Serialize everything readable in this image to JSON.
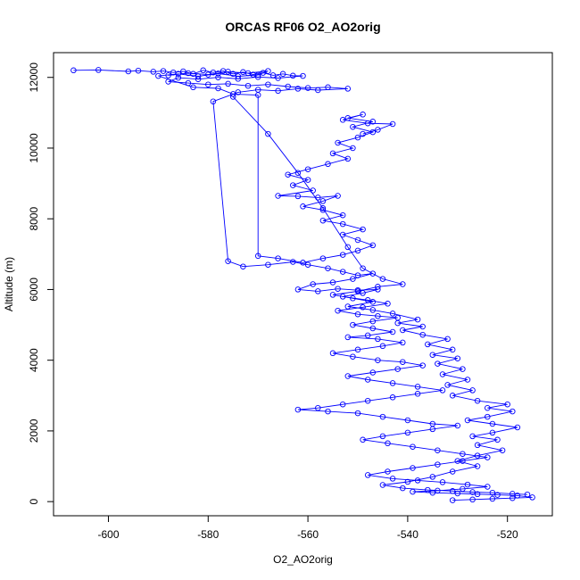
{
  "chart_data": {
    "type": "scatter",
    "title": "ORCAS RF06 O2_AO2orig",
    "xlabel": "O2_AO2orig",
    "ylabel": "Altitude (m)",
    "xlim": [
      -611,
      -511
    ],
    "ylim": [
      -400,
      12700
    ],
    "xticks": [
      -600,
      -580,
      -560,
      -540,
      -520
    ],
    "yticks": [
      0,
      2000,
      4000,
      6000,
      8000,
      10000,
      12000
    ],
    "grid": false,
    "series_color": "#0000ff",
    "series": [
      {
        "points": [
          [
            -607,
            12200
          ],
          [
            -602,
            12210
          ],
          [
            -596,
            12170
          ],
          [
            -594,
            12190
          ],
          [
            -591,
            12160
          ],
          [
            -589,
            12180
          ],
          [
            -587,
            12140
          ],
          [
            -585,
            12170
          ],
          [
            -583,
            12100
          ],
          [
            -581,
            12200
          ],
          [
            -579,
            12140
          ],
          [
            -577,
            12180
          ],
          [
            -575,
            12100
          ],
          [
            -573,
            12150
          ],
          [
            -571,
            12080
          ],
          [
            -569,
            12130
          ],
          [
            -567,
            12060
          ],
          [
            -565,
            12100
          ],
          [
            -563,
            12050
          ],
          [
            -561,
            12040
          ],
          [
            -566,
            11980
          ],
          [
            -570,
            12010
          ],
          [
            -574,
            11960
          ],
          [
            -578,
            12000
          ],
          [
            -582,
            11950
          ],
          [
            -586,
            11990
          ],
          [
            -588,
            11880
          ],
          [
            -584,
            11840
          ],
          [
            -580,
            11800
          ],
          [
            -576,
            11820
          ],
          [
            -572,
            11760
          ],
          [
            -568,
            11800
          ],
          [
            -564,
            11740
          ],
          [
            -560,
            11700
          ],
          [
            -556,
            11720
          ],
          [
            -552,
            11680
          ],
          [
            -558,
            11640
          ],
          [
            -562,
            11680
          ],
          [
            -566,
            11620
          ],
          [
            -570,
            11650
          ],
          [
            -574,
            11580
          ],
          [
            -579,
            11320
          ],
          [
            -576,
            6800
          ],
          [
            -573,
            6650
          ],
          [
            -568,
            6700
          ],
          [
            -563,
            6780
          ],
          [
            -560,
            6700
          ],
          [
            -556,
            6600
          ],
          [
            -553,
            6500
          ],
          [
            -550,
            6400
          ],
          [
            -547,
            6450
          ],
          [
            -551,
            6300
          ],
          [
            -555,
            6200
          ],
          [
            -559,
            6150
          ],
          [
            -562,
            6000
          ],
          [
            -558,
            5950
          ],
          [
            -554,
            6020
          ],
          [
            -550,
            5980
          ],
          [
            -546,
            6000
          ],
          [
            -549,
            5900
          ],
          [
            -553,
            5800
          ],
          [
            -548,
            5700
          ],
          [
            -544,
            5600
          ],
          [
            -549,
            5500
          ],
          [
            -554,
            5400
          ],
          [
            -550,
            5300
          ],
          [
            -546,
            5250
          ],
          [
            -542,
            5200
          ],
          [
            -547,
            5100
          ],
          [
            -551,
            5000
          ],
          [
            -547,
            4900
          ],
          [
            -543,
            4800
          ],
          [
            -548,
            4700
          ],
          [
            -552,
            4650
          ],
          [
            -546,
            4600
          ],
          [
            -541,
            4500
          ],
          [
            -545,
            4400
          ],
          [
            -550,
            4300
          ],
          [
            -555,
            4200
          ],
          [
            -551,
            4100
          ],
          [
            -546,
            4000
          ],
          [
            -541,
            3950
          ],
          [
            -537,
            3850
          ],
          [
            -542,
            3750
          ],
          [
            -547,
            3650
          ],
          [
            -552,
            3550
          ],
          [
            -548,
            3450
          ],
          [
            -543,
            3350
          ],
          [
            -538,
            3250
          ],
          [
            -533,
            3150
          ],
          [
            -538,
            3050
          ],
          [
            -543,
            2950
          ],
          [
            -548,
            2850
          ],
          [
            -553,
            2750
          ],
          [
            -558,
            2650
          ],
          [
            -562,
            2600
          ],
          [
            -556,
            2550
          ],
          [
            -550,
            2500
          ],
          [
            -545,
            2400
          ],
          [
            -540,
            2300
          ],
          [
            -535,
            2200
          ],
          [
            -530,
            2150
          ],
          [
            -535,
            2050
          ],
          [
            -540,
            1950
          ],
          [
            -545,
            1850
          ],
          [
            -549,
            1750
          ],
          [
            -544,
            1650
          ],
          [
            -539,
            1550
          ],
          [
            -534,
            1450
          ],
          [
            -529,
            1350
          ],
          [
            -524,
            1250
          ],
          [
            -529,
            1150
          ],
          [
            -534,
            1050
          ],
          [
            -539,
            950
          ],
          [
            -544,
            850
          ],
          [
            -548,
            750
          ],
          [
            -543,
            650
          ],
          [
            -538,
            600
          ],
          [
            -533,
            550
          ],
          [
            -528,
            480
          ],
          [
            -524,
            420
          ],
          [
            -529,
            360
          ],
          [
            -534,
            310
          ],
          [
            -539,
            280
          ],
          [
            -535,
            250
          ],
          [
            -530,
            230
          ],
          [
            -526,
            210
          ],
          [
            -522,
            190
          ],
          [
            -518,
            170
          ],
          [
            -515,
            120
          ],
          [
            -519,
            100
          ],
          [
            -523,
            80
          ],
          [
            -527,
            60
          ],
          [
            -531,
            40
          ]
        ]
      },
      {
        "points": [
          [
            -588,
            12060
          ],
          [
            -584,
            12120
          ],
          [
            -580,
            12080
          ],
          [
            -576,
            12160
          ],
          [
            -572,
            12120
          ],
          [
            -568,
            12180
          ],
          [
            -570,
            12070
          ],
          [
            -574,
            12030
          ],
          [
            -578,
            12110
          ],
          [
            -582,
            12030
          ],
          [
            -586,
            12100
          ],
          [
            -590,
            12040
          ],
          [
            -583,
            11720
          ],
          [
            -578,
            11690
          ],
          [
            -575,
            11530
          ],
          [
            -570,
            11500
          ],
          [
            -570,
            6950
          ],
          [
            -566,
            6880
          ],
          [
            -561,
            6760
          ],
          [
            -557,
            6880
          ],
          [
            -553,
            6980
          ],
          [
            -550,
            7100
          ],
          [
            -547,
            7250
          ],
          [
            -550,
            7400
          ],
          [
            -553,
            7550
          ],
          [
            -549,
            7700
          ],
          [
            -553,
            7850
          ],
          [
            -557,
            7950
          ],
          [
            -553,
            8100
          ],
          [
            -557,
            8250
          ],
          [
            -561,
            8350
          ],
          [
            -557,
            8500
          ],
          [
            -554,
            8650
          ],
          [
            -558,
            8600
          ],
          [
            -562,
            8640
          ],
          [
            -566,
            8650
          ],
          [
            -559,
            8800
          ],
          [
            -563,
            8950
          ],
          [
            -560,
            9100
          ],
          [
            -564,
            9250
          ],
          [
            -560,
            9400
          ],
          [
            -556,
            9550
          ],
          [
            -552,
            9700
          ],
          [
            -555,
            9850
          ],
          [
            -551,
            10000
          ],
          [
            -554,
            10150
          ],
          [
            -550,
            10300
          ],
          [
            -547,
            10450
          ],
          [
            -551,
            10600
          ],
          [
            -547,
            10750
          ],
          [
            -552,
            10850
          ],
          [
            -549,
            10950
          ],
          [
            -553,
            10800
          ],
          [
            -548,
            10700
          ],
          [
            -543,
            10680
          ],
          [
            -546,
            10520
          ],
          [
            -549,
            10400
          ]
        ]
      },
      {
        "points": [
          [
            -575,
            11450
          ],
          [
            -568,
            10400
          ],
          [
            -562,
            9300
          ],
          [
            -557,
            8300
          ],
          [
            -552,
            7200
          ],
          [
            -549,
            6600
          ],
          [
            -545,
            6300
          ],
          [
            -541,
            6150
          ],
          [
            -546,
            6080
          ],
          [
            -550,
            5950
          ],
          [
            -555,
            5850
          ],
          [
            -551,
            5750
          ],
          [
            -547,
            5650
          ],
          [
            -552,
            5520
          ],
          [
            -547,
            5420
          ],
          [
            -543,
            5320
          ],
          [
            -538,
            5150
          ],
          [
            -542,
            5050
          ],
          [
            -537,
            4950
          ],
          [
            -541,
            4850
          ],
          [
            -537,
            4720
          ],
          [
            -532,
            4600
          ],
          [
            -536,
            4450
          ],
          [
            -531,
            4300
          ],
          [
            -535,
            4150
          ],
          [
            -530,
            4050
          ],
          [
            -534,
            3900
          ],
          [
            -529,
            3750
          ],
          [
            -533,
            3600
          ],
          [
            -528,
            3450
          ],
          [
            -532,
            3300
          ],
          [
            -527,
            3150
          ],
          [
            -531,
            3000
          ],
          [
            -526,
            2850
          ],
          [
            -520,
            2750
          ],
          [
            -524,
            2650
          ],
          [
            -519,
            2550
          ],
          [
            -524,
            2400
          ],
          [
            -528,
            2300
          ],
          [
            -523,
            2200
          ],
          [
            -518,
            2100
          ],
          [
            -523,
            1950
          ],
          [
            -527,
            1850
          ],
          [
            -522,
            1750
          ],
          [
            -526,
            1600
          ],
          [
            -521,
            1450
          ],
          [
            -526,
            1300
          ],
          [
            -530,
            1150
          ],
          [
            -526,
            1000
          ],
          [
            -531,
            850
          ],
          [
            -535,
            700
          ],
          [
            -540,
            560
          ],
          [
            -545,
            470
          ],
          [
            -541,
            380
          ],
          [
            -536,
            330
          ],
          [
            -531,
            300
          ],
          [
            -527,
            270
          ],
          [
            -523,
            250
          ],
          [
            -519,
            220
          ],
          [
            -516,
            200
          ]
        ]
      }
    ]
  }
}
